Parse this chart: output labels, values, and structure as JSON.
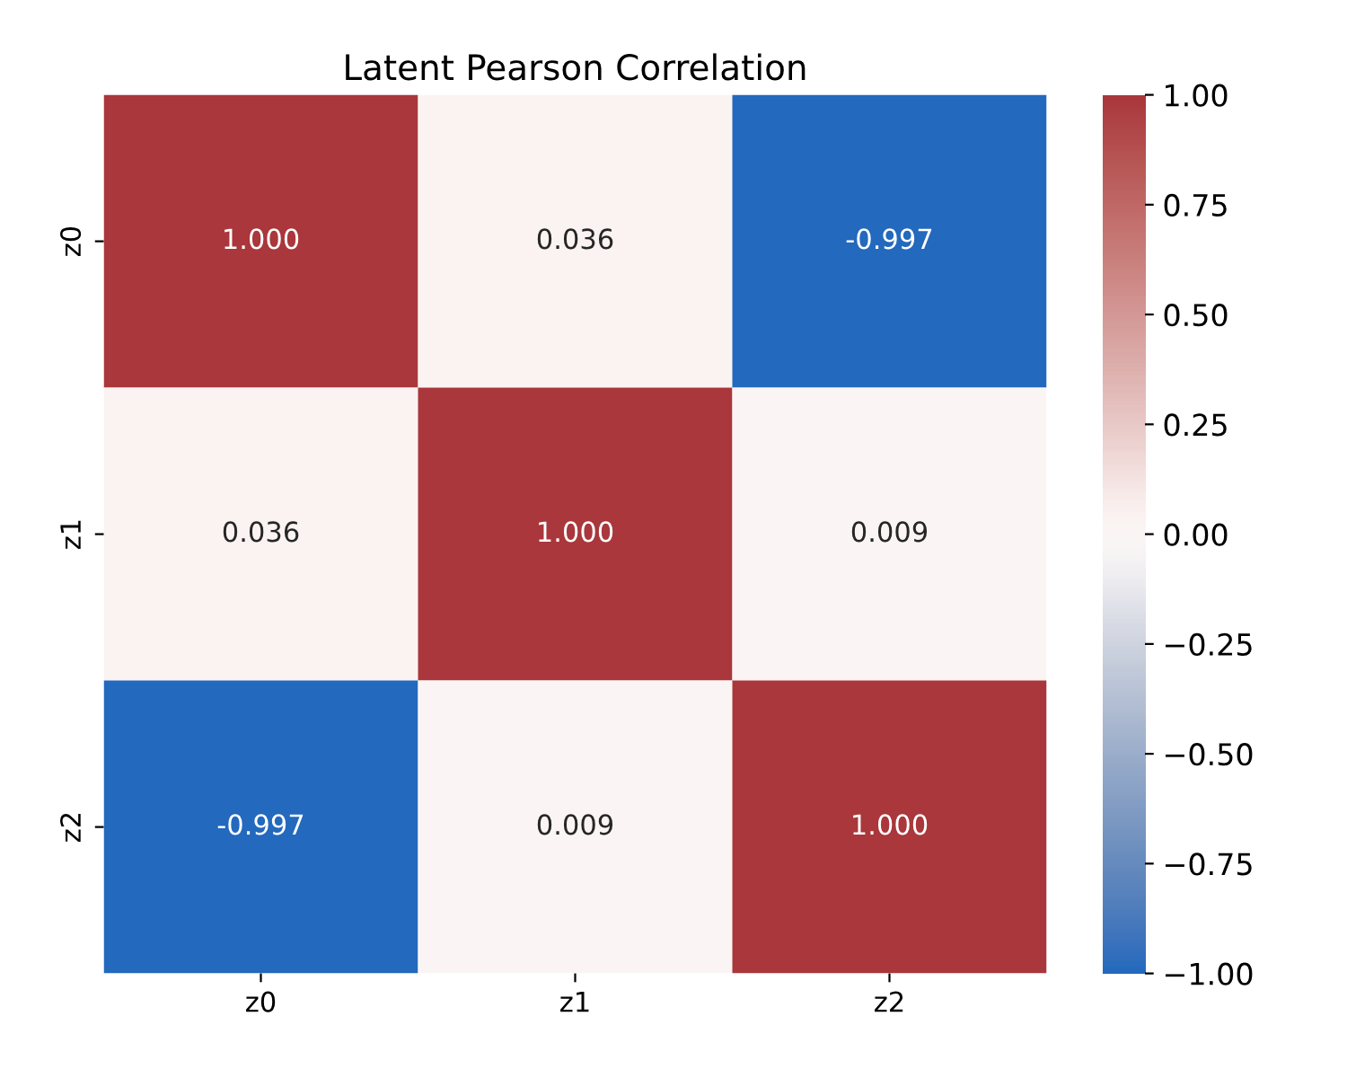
{
  "chart_data": {
    "type": "heatmap",
    "title": "Latent Pearson Correlation",
    "categories": [
      "z0",
      "z1",
      "z2"
    ],
    "y_categories": [
      "z0",
      "z1",
      "z2"
    ],
    "cells": [
      [
        1.0,
        0.036,
        -0.997
      ],
      [
        0.036,
        1.0,
        0.009
      ],
      [
        -0.997,
        0.009,
        1.0
      ]
    ],
    "cell_labels": [
      [
        "1.000",
        "0.036",
        "-0.997"
      ],
      [
        "0.036",
        "1.000",
        "0.009"
      ],
      [
        "-0.997",
        "0.009",
        "1.000"
      ]
    ],
    "clim": [
      -1,
      1
    ],
    "cticks": [
      {
        "value": -1,
        "label": "−1.00"
      },
      {
        "value": -0.75,
        "label": "−0.75"
      },
      {
        "value": -0.5,
        "label": "−0.50"
      },
      {
        "value": -0.25,
        "label": "−0.25"
      },
      {
        "value": 0,
        "label": "0.00"
      },
      {
        "value": 0.25,
        "label": "0.25"
      },
      {
        "value": 0.5,
        "label": "0.50"
      },
      {
        "value": 0.75,
        "label": "0.75"
      },
      {
        "value": 1,
        "label": "1.00"
      }
    ]
  }
}
